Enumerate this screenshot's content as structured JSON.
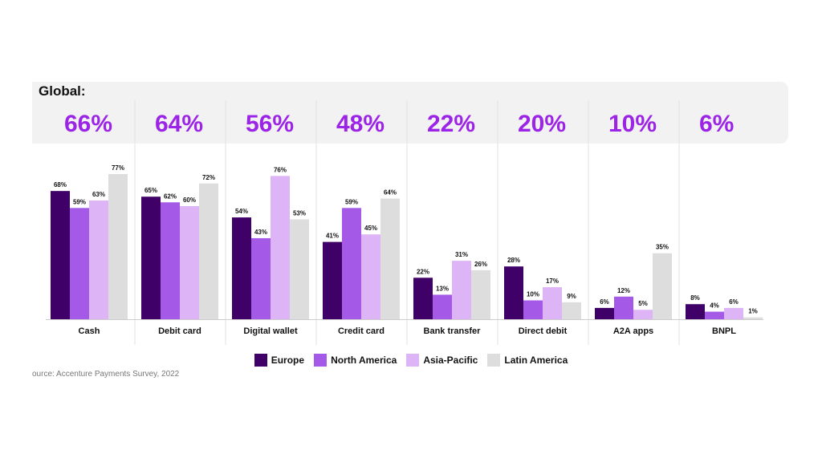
{
  "colors": {
    "Europe": "#3f0068",
    "North America": "#a45ae6",
    "Asia-Pacific": "#ddb5f7",
    "Latin America": "#dddddd",
    "accent": "#9b24e6"
  },
  "global_label": "Global:",
  "source": "ource: Accenture Payments Survey, 2022",
  "chart_data": {
    "type": "bar",
    "categories": [
      "Cash",
      "Debit card",
      "Digital wallet",
      "Credit card",
      "Bank transfer",
      "Direct debit",
      "A2A apps",
      "BNPL"
    ],
    "global_values": [
      "66%",
      "64%",
      "56%",
      "48%",
      "22%",
      "20%",
      "10%",
      "6%"
    ],
    "series": [
      {
        "name": "Europe",
        "values": [
          68,
          65,
          54,
          41,
          22,
          28,
          6,
          8
        ]
      },
      {
        "name": "North America",
        "values": [
          59,
          62,
          43,
          59,
          13,
          10,
          12,
          4
        ]
      },
      {
        "name": "Asia-Pacific",
        "values": [
          63,
          60,
          76,
          45,
          31,
          17,
          5,
          6
        ]
      },
      {
        "name": "Latin America",
        "values": [
          77,
          72,
          53,
          64,
          26,
          9,
          35,
          1
        ]
      }
    ],
    "unit": "%",
    "ylim": [
      0,
      100
    ],
    "grid": false,
    "legend_position": "bottom"
  }
}
